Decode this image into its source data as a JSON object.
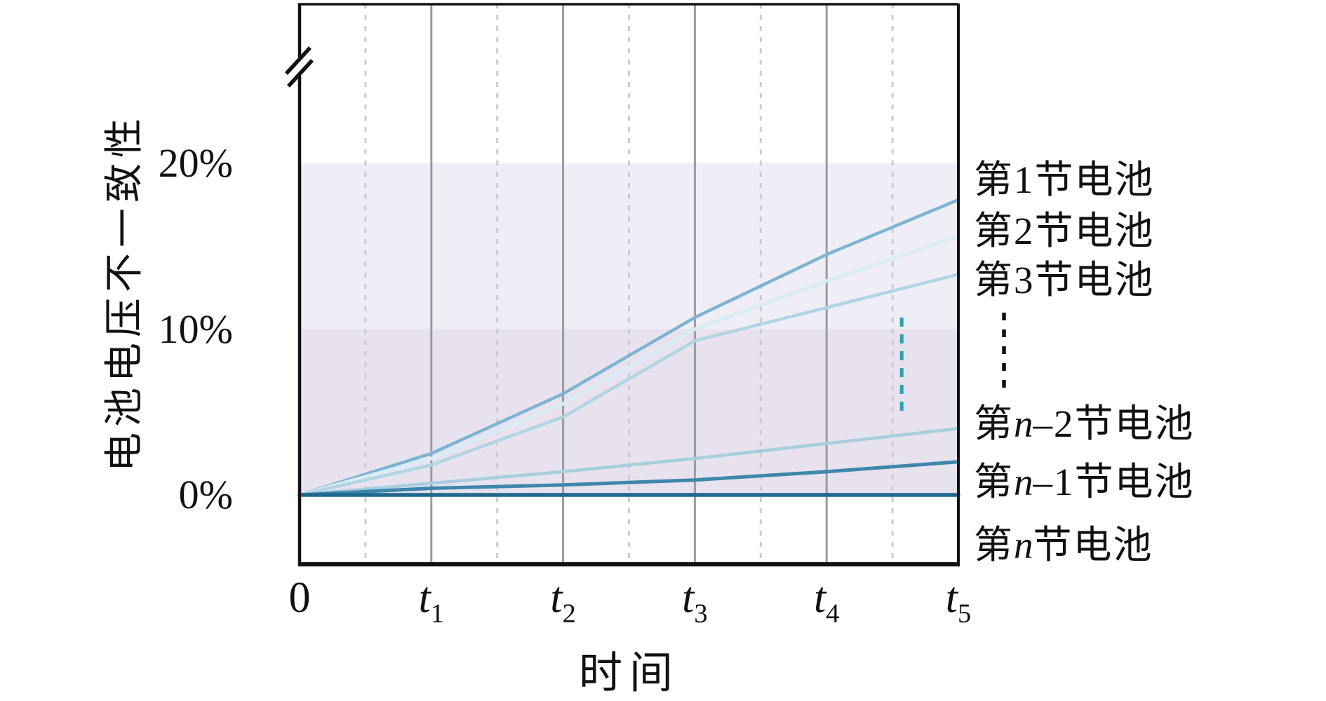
{
  "chart_data": {
    "type": "line",
    "title": "",
    "xlabel": "时间",
    "ylabel": "电池电压不一致性",
    "xlim_t": [
      0,
      5
    ],
    "ylim_pct": [
      0,
      20
    ],
    "y_axis_break": true,
    "grid": "on",
    "legend_position": "right-outside",
    "x": [
      0,
      1,
      2,
      3,
      4,
      5
    ],
    "xtick_labels": [
      {
        "base": "0",
        "sub": ""
      },
      {
        "base": "t",
        "sub": "1"
      },
      {
        "base": "t",
        "sub": "2"
      },
      {
        "base": "t",
        "sub": "3"
      },
      {
        "base": "t",
        "sub": "4"
      },
      {
        "base": "t",
        "sub": "5"
      }
    ],
    "ytick_labels": [
      {
        "label": "0%",
        "pct": 0
      },
      {
        "label": "10%",
        "pct": 10
      },
      {
        "label": "20%",
        "pct": 20
      }
    ],
    "bands": [
      {
        "from_pct": 0,
        "to_pct": 10,
        "color": "#e7e2ee"
      },
      {
        "from_pct": 10,
        "to_pct": 20,
        "color": "#efedf5"
      }
    ],
    "gridlines": {
      "solid_t": [
        1,
        2,
        3,
        4
      ],
      "dashed_t": [
        0.5,
        1.5,
        2.5,
        3.5,
        4.5
      ],
      "solid_color": "#9b9b9b",
      "dashed_color": "#cccccc"
    },
    "series": [
      {
        "name": "第1节电池",
        "color": "#7db4d2",
        "width": 4.5,
        "values_pct": [
          0,
          2.5,
          6.1,
          10.7,
          14.5,
          17.8
        ]
      },
      {
        "name": "第2节电池",
        "color": "#d9ecf5",
        "width": 5,
        "values_pct": [
          0,
          2.2,
          5.5,
          10.0,
          12.9,
          15.6
        ]
      },
      {
        "name": "第3节电池",
        "color": "#b0d4e4",
        "width": 4.5,
        "values_pct": [
          0,
          1.8,
          4.7,
          9.3,
          11.3,
          13.3
        ]
      },
      {
        "name": "第n–2节电池",
        "color": "#a6cee0",
        "width": 4.5,
        "values_pct": [
          0,
          0.7,
          1.4,
          2.2,
          3.1,
          4.0
        ]
      },
      {
        "name": "第n–1节电池",
        "color": "#3d87ac",
        "width": 5,
        "values_pct": [
          0,
          0.4,
          0.6,
          0.9,
          1.4,
          2.0
        ]
      },
      {
        "name": "第n节电池",
        "color": "#1f698f",
        "width": 5.5,
        "values_pct": [
          0,
          0,
          0,
          0,
          0,
          0
        ]
      }
    ],
    "omitted_series_marker": {
      "x_t": 4.57,
      "from_pct": 5.0,
      "to_pct": 10.7,
      "color": "#2f9fb3"
    },
    "legend_ellipsis": "⋮"
  }
}
